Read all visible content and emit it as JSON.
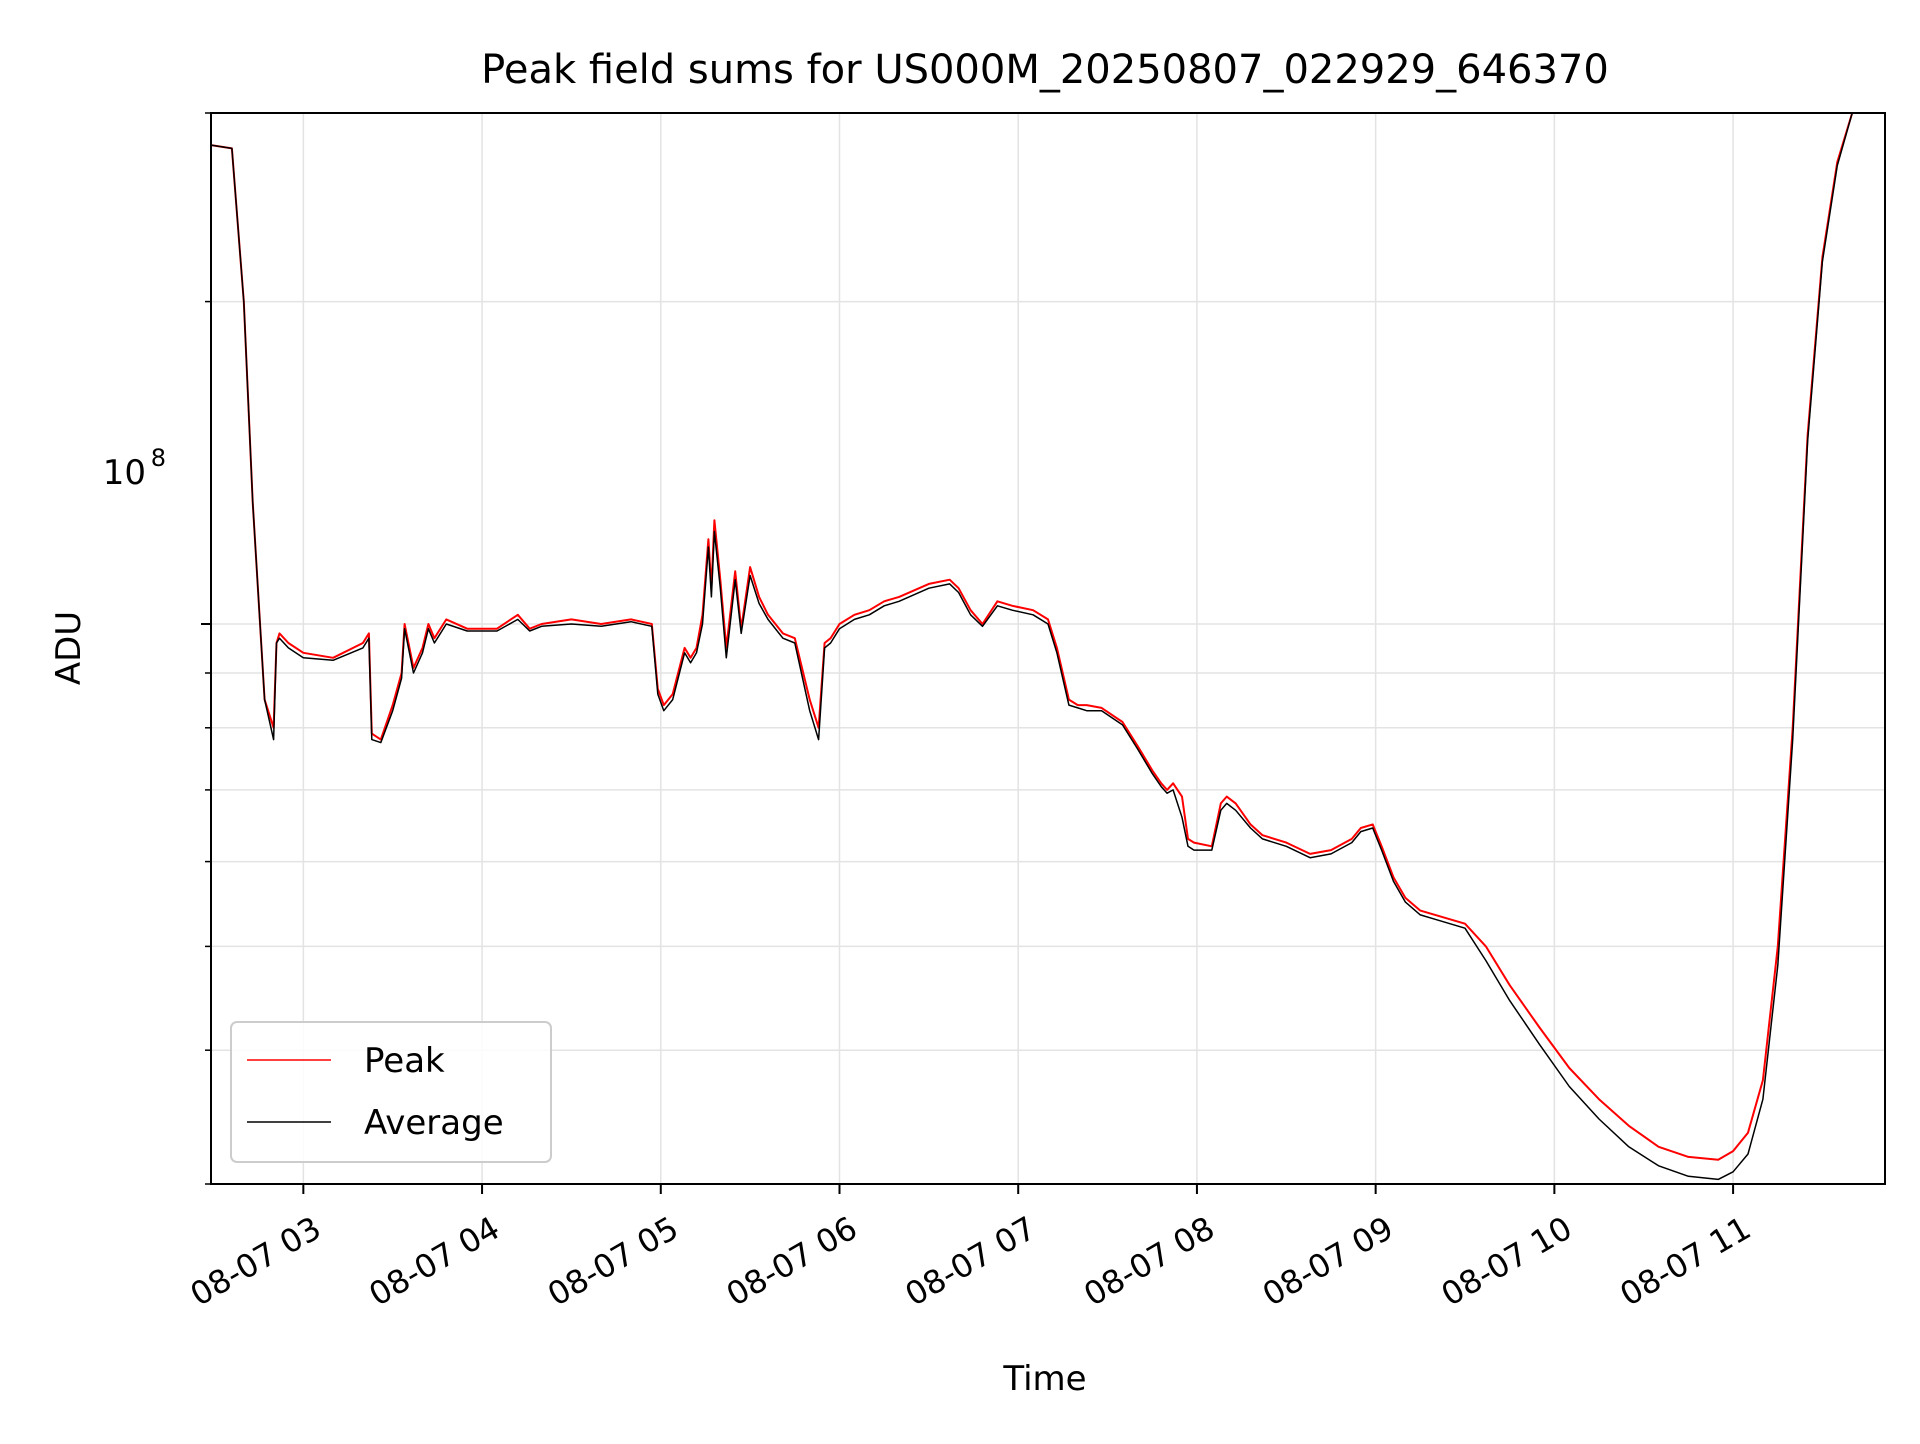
{
  "chart_data": {
    "type": "line",
    "title": "Peak field sums for US000M_20250807_022929_646370",
    "xlabel": "Time",
    "ylabel": "ADU",
    "y_scale": "log",
    "ylim": [
      30000000,
      300000000
    ],
    "xlim": [
      "2025-08-07 02:29",
      "2025-08-07 11:51"
    ],
    "x_tick_labels": [
      "08-07 03",
      "08-07 04",
      "08-07 05",
      "08-07 06",
      "08-07 07",
      "08-07 08",
      "08-07 09",
      "08-07 10",
      "08-07 11"
    ],
    "x_ticks": [
      "2025-08-07 03:00",
      "2025-08-07 04:00",
      "2025-08-07 05:00",
      "2025-08-07 06:00",
      "2025-08-07 07:00",
      "2025-08-07 08:00",
      "2025-08-07 09:00",
      "2025-08-07 10:00",
      "2025-08-07 11:00"
    ],
    "y_tick_label": {
      "base": "10",
      "exp": "8"
    },
    "grid": true,
    "legend_position": "lower-left",
    "series": [
      {
        "name": "Peak",
        "color": "#ff0000",
        "x": [
          "2025-08-07 02:29",
          "2025-08-07 02:36",
          "2025-08-07 02:40",
          "2025-08-07 02:43",
          "2025-08-07 02:47",
          "2025-08-07 02:50",
          "2025-08-07 02:51",
          "2025-08-07 02:52",
          "2025-08-07 02:55",
          "2025-08-07 03:00",
          "2025-08-07 03:10",
          "03:20",
          "2025-08-07 03:22",
          "2025-08-07 03:23",
          "2025-08-07 03:26",
          "2025-08-07 03:30",
          "2025-08-07 03:33",
          "2025-08-07 03:34",
          "2025-08-07 03:37",
          "2025-08-07 03:40",
          "2025-08-07 03:42",
          "2025-08-07 03:44",
          "2025-08-07 03:48",
          "2025-08-07 03:55",
          "2025-08-07 04:05",
          "2025-08-07 04:12",
          "2025-08-07 04:16",
          "2025-08-07 04:20",
          "2025-08-07 04:30",
          "2025-08-07 04:40",
          "2025-08-07 04:50",
          "2025-08-07 04:57",
          "2025-08-07 04:59",
          "2025-08-07 05:01",
          "2025-08-07 05:04",
          "2025-08-07 05:08",
          "2025-08-07 05:10",
          "2025-08-07 05:12",
          "2025-08-07 05:14",
          "2025-08-07 05:16",
          "2025-08-07 05:17",
          "2025-08-07 05:18",
          "2025-08-07 05:20",
          "2025-08-07 05:22",
          "2025-08-07 05:25",
          "2025-08-07 05:27",
          "2025-08-07 05:30",
          "2025-08-07 05:33",
          "2025-08-07 05:36",
          "2025-08-07 05:41",
          "2025-08-07 05:45",
          "2025-08-07 05:50",
          "2025-08-07 05:53",
          "2025-08-07 05:55",
          "2025-08-07 05:57",
          "2025-08-07 06:00",
          "2025-08-07 06:05",
          "2025-08-07 06:10",
          "2025-08-07 06:15",
          "2025-08-07 06:20",
          "2025-08-07 06:30",
          "2025-08-07 06:37",
          "2025-08-07 06:40",
          "2025-08-07 06:44",
          "2025-08-07 06:48",
          "2025-08-07 06:53",
          "2025-08-07 06:58",
          "2025-08-07 07:05",
          "2025-08-07 07:10",
          "2025-08-07 07:13",
          "2025-08-07 07:17",
          "2025-08-07 07:20",
          "2025-08-07 07:23",
          "2025-08-07 07:28",
          "2025-08-07 07:35",
          "2025-08-07 07:40",
          "2025-08-07 07:45",
          "2025-08-07 07:48",
          "2025-08-07 07:50",
          "2025-08-07 07:52",
          "2025-08-07 07:55",
          "2025-08-07 07:57",
          "2025-08-07 07:59",
          "2025-08-07 08:05",
          "2025-08-07 08:08",
          "2025-08-07 08:10",
          "2025-08-07 08:13",
          "2025-08-07 08:18",
          "2025-08-07 08:22",
          "2025-08-07 08:30",
          "2025-08-07 08:38",
          "2025-08-07 08:45",
          "2025-08-07 08:52",
          "2025-08-07 08:55",
          "2025-08-07 08:59",
          "2025-08-07 09:02",
          "2025-08-07 09:06",
          "2025-08-07 09:10",
          "2025-08-07 09:15",
          "2025-08-07 09:20",
          "2025-08-07 09:30",
          "2025-08-07 09:37",
          "2025-08-07 09:45",
          "2025-08-07 09:55",
          "2025-08-07 10:05",
          "2025-08-07 10:15",
          "2025-08-07 10:25",
          "2025-08-07 10:35",
          "2025-08-07 10:45",
          "2025-08-07 10:55",
          "2025-08-07 11:00",
          "2025-08-07 11:05",
          "2025-08-07 11:10",
          "2025-08-07 11:15",
          "2025-08-07 11:20",
          "2025-08-07 11:25",
          "2025-08-07 11:30",
          "2025-08-07 11:35",
          "2025-08-07 11:40",
          "2025-08-07 11:45",
          "2025-08-07 11:51"
        ],
        "y": [
          280000000,
          278000000,
          200000000,
          130000000,
          85000000,
          80000000,
          96000000,
          98000000,
          96000000,
          94000000,
          93000000,
          96000000,
          98000000,
          79000000,
          78000000,
          84000000,
          90000000,
          100000000,
          91000000,
          95000000,
          100000000,
          97000000,
          101000000,
          99000000,
          99000000,
          102000000,
          99000000,
          100000000,
          101000000,
          100000000,
          101000000,
          100000000,
          87000000,
          84000000,
          86000000,
          95000000,
          93000000,
          95000000,
          102000000,
          120000000,
          108000000,
          125000000,
          110000000,
          95000000,
          112000000,
          99000000,
          113000000,
          106000000,
          102000000,
          98000000,
          97000000,
          85000000,
          80000000,
          96000000,
          97000000,
          100000000,
          102000000,
          103000000,
          105000000,
          106000000,
          109000000,
          110000000,
          108000000,
          103000000,
          100000000,
          105000000,
          104000000,
          103000000,
          101000000,
          95000000,
          85000000,
          84000000,
          84000000,
          83500000,
          81000000,
          77000000,
          73000000,
          71000000,
          70000000,
          71000000,
          69000000,
          63000000,
          62500000,
          62000000,
          68000000,
          69000000,
          68000000,
          65000000,
          63500000,
          62500000,
          61000000,
          61500000,
          63000000,
          64500000,
          65000000,
          62000000,
          58000000,
          55500000,
          54000000,
          53500000,
          52500000,
          50000000,
          46000000,
          42000000,
          38500000,
          36000000,
          34000000,
          32500000,
          31800000,
          31600000,
          32200000,
          33500000,
          37500000,
          50000000,
          80000000,
          150000000,
          220000000,
          270000000,
          300000000,
          300000000,
          300000000
        ]
      },
      {
        "name": "Average",
        "color": "#000000",
        "x": [
          "2025-08-07 02:29",
          "2025-08-07 02:36",
          "2025-08-07 02:40",
          "2025-08-07 02:43",
          "2025-08-07 02:47",
          "2025-08-07 02:50",
          "2025-08-07 02:51",
          "2025-08-07 02:52",
          "2025-08-07 02:55",
          "2025-08-07 03:00",
          "2025-08-07 03:10",
          "2025-08-07 03:20",
          "2025-08-07 03:22",
          "2025-08-07 03:23",
          "2025-08-07 03:26",
          "2025-08-07 03:30",
          "2025-08-07 03:33",
          "2025-08-07 03:34",
          "2025-08-07 03:37",
          "2025-08-07 03:40",
          "2025-08-07 03:42",
          "2025-08-07 03:44",
          "2025-08-07 03:48",
          "2025-08-07 03:55",
          "2025-08-07 04:05",
          "2025-08-07 04:12",
          "2025-08-07 04:16",
          "2025-08-07 04:20",
          "2025-08-07 04:30",
          "2025-08-07 04:40",
          "2025-08-07 04:50",
          "2025-08-07 04:57",
          "2025-08-07 04:59",
          "2025-08-07 05:01",
          "2025-08-07 05:04",
          "2025-08-07 05:08",
          "2025-08-07 05:10",
          "2025-08-07 05:12",
          "2025-08-07 05:14",
          "2025-08-07 05:16",
          "2025-08-07 05:17",
          "2025-08-07 05:18",
          "2025-08-07 05:20",
          "2025-08-07 05:22",
          "2025-08-07 05:25",
          "2025-08-07 05:27",
          "2025-08-07 05:30",
          "2025-08-07 05:33",
          "2025-08-07 05:36",
          "2025-08-07 05:41",
          "2025-08-07 05:45",
          "2025-08-07 05:50",
          "2025-08-07 05:53",
          "2025-08-07 05:55",
          "2025-08-07 05:57",
          "2025-08-07 06:00",
          "2025-08-07 06:05",
          "2025-08-07 06:10",
          "2025-08-07 06:15",
          "2025-08-07 06:20",
          "2025-08-07 06:30",
          "2025-08-07 06:37",
          "2025-08-07 06:40",
          "2025-08-07 06:44",
          "2025-08-07 06:48",
          "2025-08-07 06:53",
          "2025-08-07 06:58",
          "2025-08-07 07:05",
          "2025-08-07 07:10",
          "2025-08-07 07:13",
          "2025-08-07 07:17",
          "2025-08-07 07:20",
          "2025-08-07 07:23",
          "2025-08-07 07:28",
          "2025-08-07 07:35",
          "2025-08-07 07:40",
          "2025-08-07 07:45",
          "2025-08-07 07:48",
          "2025-08-07 07:50",
          "2025-08-07 07:52",
          "2025-08-07 07:55",
          "2025-08-07 07:57",
          "2025-08-07 07:59",
          "2025-08-07 08:05",
          "2025-08-07 08:08",
          "2025-08-07 08:10",
          "2025-08-07 08:13",
          "2025-08-07 08:18",
          "2025-08-07 08:22",
          "2025-08-07 08:30",
          "2025-08-07 08:38",
          "2025-08-07 08:45",
          "2025-08-07 08:52",
          "2025-08-07 08:55",
          "2025-08-07 08:59",
          "2025-08-07 09:02",
          "2025-08-07 09:06",
          "2025-08-07 09:10",
          "2025-08-07 09:15",
          "2025-08-07 09:20",
          "2025-08-07 09:30",
          "2025-08-07 09:37",
          "2025-08-07 09:45",
          "2025-08-07 09:55",
          "2025-08-07 10:05",
          "2025-08-07 10:15",
          "2025-08-07 10:25",
          "2025-08-07 10:35",
          "2025-08-07 10:45",
          "2025-08-07 10:55",
          "2025-08-07 11:00",
          "2025-08-07 11:05",
          "2025-08-07 11:10",
          "2025-08-07 11:15",
          "2025-08-07 11:20",
          "2025-08-07 11:25",
          "2025-08-07 11:30",
          "2025-08-07 11:35",
          "2025-08-07 11:40",
          "2025-08-07 11:45",
          "2025-08-07 11:51"
        ],
        "y": [
          280000000,
          278000000,
          200000000,
          130000000,
          85000000,
          78000000,
          96000000,
          97000000,
          95000000,
          93000000,
          92500000,
          95000000,
          97000000,
          78000000,
          77500000,
          83000000,
          89000000,
          99000000,
          90000000,
          94000000,
          99000000,
          96000000,
          100000000,
          98500000,
          98500000,
          101000000,
          98500000,
          99500000,
          100000000,
          99500000,
          100500000,
          99500000,
          86000000,
          83000000,
          85000000,
          94000000,
          92000000,
          94000000,
          100000000,
          118000000,
          106000000,
          122000000,
          108000000,
          93000000,
          110000000,
          98000000,
          111000000,
          104500000,
          101000000,
          97000000,
          96000000,
          83000000,
          78000000,
          95000000,
          96000000,
          99000000,
          101000000,
          102000000,
          104000000,
          105000000,
          108000000,
          109000000,
          107000000,
          102000000,
          99500000,
          104000000,
          103000000,
          102000000,
          100000000,
          94000000,
          84000000,
          83500000,
          83000000,
          83000000,
          80500000,
          76500000,
          72500000,
          70500000,
          69500000,
          70000000,
          66000000,
          62000000,
          61500000,
          61500000,
          67000000,
          68000000,
          67000000,
          64500000,
          63000000,
          62000000,
          60500000,
          61000000,
          62500000,
          64000000,
          64500000,
          61500000,
          57500000,
          55000000,
          53500000,
          53000000,
          52000000,
          48500000,
          44500000,
          40500000,
          37000000,
          34500000,
          32500000,
          31200000,
          30500000,
          30300000,
          30800000,
          32000000,
          36000000,
          48000000,
          78000000,
          148000000,
          218000000,
          268000000,
          300000000,
          300000000,
          300000000
        ]
      }
    ]
  }
}
